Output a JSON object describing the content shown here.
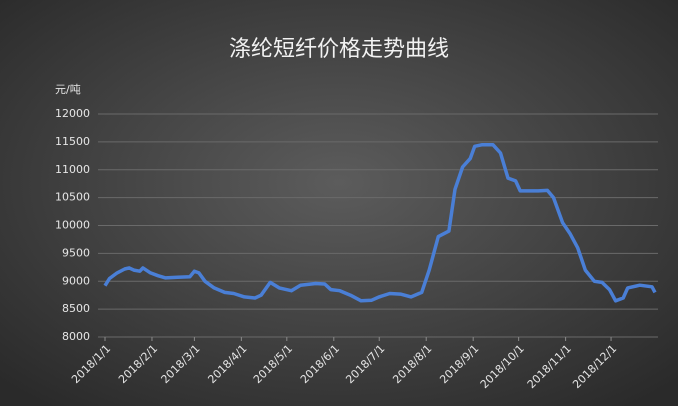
{
  "chart_data": {
    "type": "line",
    "title": "涤纶短纤价格走势曲线",
    "y_label": "元/吨",
    "x": [
      "2018/1/1",
      "2018/1/4",
      "2018/1/9",
      "2018/1/14",
      "2018/1/17",
      "2018/1/20",
      "2018/1/24",
      "2018/1/26",
      "2018/1/31",
      "2018/2/5",
      "2018/2/10",
      "2018/2/18",
      "2018/2/26",
      "2018/3/1",
      "2018/3/4",
      "2018/3/8",
      "2018/3/14",
      "2018/3/21",
      "2018/3/27",
      "2018/4/3",
      "2018/4/10",
      "2018/4/14",
      "2018/4/20",
      "2018/4/26",
      "2018/5/4",
      "2018/5/10",
      "2018/5/20",
      "2018/5/26",
      "2018/5/30",
      "2018/6/5",
      "2018/6/12",
      "2018/6/19",
      "2018/6/26",
      "2018/7/1",
      "2018/7/8",
      "2018/7/15",
      "2018/7/22",
      "2018/7/29",
      "2018/8/3",
      "2018/8/9",
      "2018/8/16",
      "2018/8/20",
      "2018/8/25",
      "2018/8/30",
      "2018/9/2",
      "2018/9/7",
      "2018/9/14",
      "2018/9/19",
      "2018/9/24",
      "2018/9/29",
      "2018/10/2",
      "2018/10/14",
      "2018/10/20",
      "2018/10/24",
      "2018/10/30",
      "2018/11/4",
      "2018/11/9",
      "2018/11/14",
      "2018/11/20",
      "2018/11/25",
      "2018/11/30",
      "2018/12/4",
      "2018/12/9",
      "2018/12/12",
      "2018/12/20",
      "2018/12/28",
      "2018/12/30"
    ],
    "series": [
      {
        "name": "涤纶短纤",
        "color": "#4a7fd6",
        "values": [
          8920,
          9050,
          9150,
          9220,
          9240,
          9200,
          9180,
          9240,
          9150,
          9100,
          9060,
          9070,
          9080,
          9180,
          9150,
          9000,
          8880,
          8800,
          8780,
          8720,
          8700,
          8750,
          8980,
          8880,
          8830,
          8930,
          8960,
          8950,
          8850,
          8830,
          8750,
          8650,
          8660,
          8720,
          8780,
          8770,
          8720,
          8800,
          9200,
          9800,
          9900,
          10650,
          11050,
          11200,
          11420,
          11450,
          11450,
          11300,
          10850,
          10800,
          10620,
          10620,
          10630,
          10500,
          10050,
          9850,
          9600,
          9200,
          9000,
          8980,
          8850,
          8650,
          8700,
          8880,
          8930,
          8900,
          8800
        ]
      }
    ],
    "xlim": [
      "2018/1/1",
      "2018/12/30"
    ],
    "xticks": [
      "2018/1/1",
      "2018/2/1",
      "2018/3/1",
      "2018/4/1",
      "2018/5/1",
      "2018/6/1",
      "2018/7/1",
      "2018/8/1",
      "2018/9/1",
      "2018/10/1",
      "2018/11/1",
      "2018/12/1"
    ],
    "ylim": [
      8000,
      12000
    ],
    "yticks": [
      8000,
      8500,
      9000,
      9500,
      10000,
      10500,
      11000,
      11500,
      12000
    ],
    "grid": true
  }
}
